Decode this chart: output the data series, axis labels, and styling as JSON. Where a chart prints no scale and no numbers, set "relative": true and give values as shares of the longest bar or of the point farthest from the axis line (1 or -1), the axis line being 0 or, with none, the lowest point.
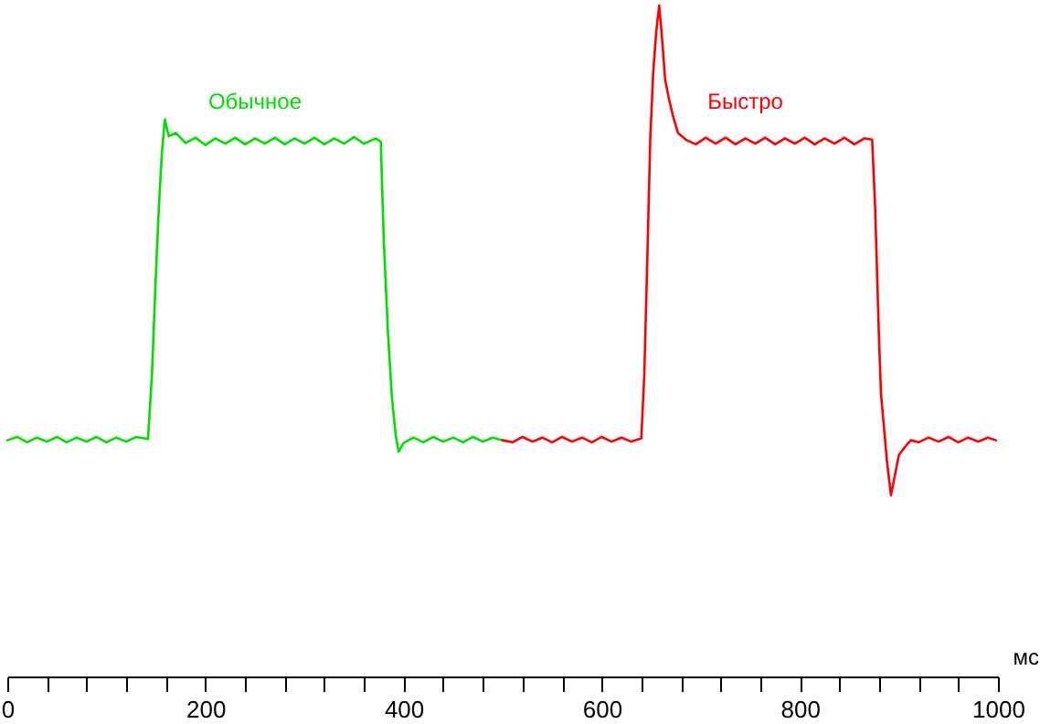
{
  "chart_data": {
    "type": "line",
    "relative": true,
    "xlabel": "мс",
    "xlim": [
      0,
      1000
    ],
    "xticks": [
      0,
      {
        "value": 40,
        "label": null
      },
      {
        "value": 80,
        "label": null
      },
      {
        "value": 120,
        "label": null
      },
      {
        "value": 160,
        "label": null
      },
      200,
      {
        "value": 240,
        "label": null
      },
      {
        "value": 280,
        "label": null
      },
      {
        "value": 320,
        "label": null
      },
      {
        "value": 360,
        "label": null
      },
      400,
      {
        "value": 440,
        "label": null
      },
      {
        "value": 480,
        "label": null
      },
      {
        "value": 520,
        "label": null
      },
      {
        "value": 560,
        "label": null
      },
      600,
      {
        "value": 640,
        "label": null
      },
      {
        "value": 680,
        "label": null
      },
      {
        "value": 720,
        "label": null
      },
      {
        "value": 760,
        "label": null
      },
      800,
      {
        "value": 840,
        "label": null
      },
      {
        "value": 880,
        "label": null
      },
      {
        "value": 920,
        "label": null
      },
      {
        "value": 960,
        "label": null
      },
      1000
    ],
    "legend": false,
    "marker": "none",
    "line_style": "solid",
    "series": [
      {
        "name": "Обычное",
        "color": "#00e000",
        "x": [
          0,
          10,
          20,
          30,
          40,
          50,
          60,
          70,
          80,
          90,
          100,
          110,
          120,
          130,
          142,
          146,
          150,
          153,
          156,
          159,
          163,
          170,
          180,
          190,
          200,
          210,
          220,
          230,
          240,
          250,
          260,
          270,
          280,
          290,
          300,
          310,
          320,
          330,
          340,
          350,
          360,
          372,
          377,
          380,
          384,
          388,
          392,
          395,
          400,
          410,
          420,
          430,
          440,
          450,
          460,
          470,
          480,
          490,
          500
        ],
        "values": [
          0.352,
          0.357,
          0.349,
          0.356,
          0.35,
          0.357,
          0.349,
          0.356,
          0.35,
          0.357,
          0.349,
          0.356,
          0.35,
          0.357,
          0.354,
          0.45,
          0.6,
          0.7,
          0.78,
          0.83,
          0.805,
          0.81,
          0.795,
          0.803,
          0.792,
          0.802,
          0.794,
          0.803,
          0.793,
          0.802,
          0.794,
          0.803,
          0.793,
          0.802,
          0.794,
          0.803,
          0.793,
          0.802,
          0.794,
          0.804,
          0.794,
          0.802,
          0.797,
          0.65,
          0.52,
          0.42,
          0.36,
          0.335,
          0.348,
          0.356,
          0.349,
          0.357,
          0.35,
          0.356,
          0.349,
          0.357,
          0.35,
          0.356,
          0.352
        ]
      },
      {
        "name": "Быстро",
        "color": "#ff0000",
        "x": [
          500,
          510,
          520,
          530,
          540,
          550,
          560,
          570,
          580,
          590,
          600,
          610,
          620,
          630,
          640,
          643,
          646,
          649,
          652,
          655,
          658,
          661,
          664,
          668,
          672,
          677,
          685,
          695,
          705,
          715,
          725,
          735,
          745,
          755,
          765,
          775,
          785,
          795,
          805,
          815,
          825,
          835,
          845,
          855,
          865,
          873,
          876,
          878,
          880,
          882,
          885,
          888,
          892,
          896,
          900,
          905,
          912,
          920,
          930,
          940,
          950,
          960,
          970,
          980,
          990,
          998
        ],
        "values": [
          0.352,
          0.349,
          0.357,
          0.35,
          0.356,
          0.349,
          0.357,
          0.35,
          0.356,
          0.349,
          0.357,
          0.35,
          0.356,
          0.35,
          0.355,
          0.45,
          0.62,
          0.8,
          0.9,
          0.96,
          1.0,
          0.95,
          0.89,
          0.86,
          0.835,
          0.81,
          0.8,
          0.793,
          0.803,
          0.794,
          0.803,
          0.793,
          0.802,
          0.794,
          0.803,
          0.793,
          0.802,
          0.794,
          0.803,
          0.793,
          0.802,
          0.794,
          0.803,
          0.793,
          0.802,
          0.8,
          0.7,
          0.6,
          0.5,
          0.42,
          0.37,
          0.32,
          0.27,
          0.3,
          0.33,
          0.34,
          0.352,
          0.349,
          0.356,
          0.35,
          0.357,
          0.349,
          0.356,
          0.35,
          0.356,
          0.352
        ]
      }
    ]
  }
}
